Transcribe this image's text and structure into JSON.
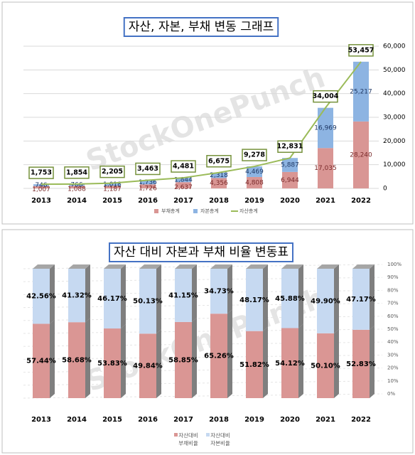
{
  "chart_data": [
    {
      "type": "stacked-bar-line",
      "title": "자산, 자본, 부채 변동 그래프",
      "watermark": "StockOnePunch",
      "categories": [
        "2013",
        "2014",
        "2015",
        "2016",
        "2017",
        "2018",
        "2019",
        "2020",
        "2021",
        "2022"
      ],
      "series": [
        {
          "name": "부채총계",
          "color": "#d99694",
          "kind": "bar",
          "values": [
            1007,
            1088,
            1187,
            1726,
            2637,
            4356,
            4808,
            6944,
            17035,
            28240
          ],
          "value_labels": [
            "1,007",
            "1,088",
            "1,187",
            "1,726",
            "2,637",
            "4,356",
            "4,808",
            "6,944",
            "17,035",
            "28,240"
          ]
        },
        {
          "name": "자본총계",
          "color": "#8db4e2",
          "kind": "bar",
          "values": [
            746,
            766,
            1018,
            1736,
            1844,
            2318,
            4469,
            5887,
            16969,
            25217
          ],
          "value_labels": [
            "746",
            "766",
            "1,018",
            "1,736",
            "1,844",
            "2,318",
            "4,469",
            "5,887",
            "16,969",
            "25,217"
          ]
        },
        {
          "name": "자산총계",
          "color": "#9bbb59",
          "kind": "line",
          "values": [
            1753,
            1854,
            2205,
            3463,
            4481,
            6675,
            9278,
            12831,
            34004,
            53457
          ],
          "value_labels": [
            "1,753",
            "1,854",
            "2,205",
            "3,463",
            "4,481",
            "6,675",
            "9,278",
            "12,831",
            "34,004",
            "53,457"
          ]
        }
      ],
      "ylim": [
        0,
        60000
      ],
      "yticks": [
        0,
        {
          "value": 10000,
          "label": "10,000"
        },
        {
          "value": 20000,
          "label": "20,000"
        },
        {
          "value": 30000,
          "label": "30,000"
        },
        {
          "value": 40000,
          "label": "40,000"
        },
        {
          "value": 50000,
          "label": "50,000"
        },
        {
          "value": 60000,
          "label": "60,000"
        }
      ],
      "grid": true
    },
    {
      "type": "stacked-bar-3d",
      "title": "자산 대비 자본과 부채 비율 변동표",
      "watermark": "StockOnePunch",
      "categories": [
        "2013",
        "2014",
        "2015",
        "2016",
        "2017",
        "2018",
        "2019",
        "2020",
        "2021",
        "2022"
      ],
      "series": [
        {
          "name": "자산대비 부채비율",
          "color": "#da9694",
          "values": [
            57.44,
            58.68,
            53.83,
            49.84,
            58.85,
            65.26,
            51.82,
            54.12,
            50.1,
            52.83
          ],
          "value_labels": [
            "57.44%",
            "58.68%",
            "53.83%",
            "49.84%",
            "58.85%",
            "65.26%",
            "51.82%",
            "54.12%",
            "50.10%",
            "52.83%"
          ]
        },
        {
          "name": "자산대비 자본비율",
          "color": "#c6d9f1",
          "values": [
            42.56,
            41.32,
            46.17,
            50.13,
            41.15,
            34.73,
            48.17,
            45.88,
            49.9,
            47.17
          ],
          "value_labels": [
            "42.56%",
            "41.32%",
            "46.17%",
            "50.13%",
            "41.15%",
            "34.73%",
            "48.17%",
            "45.88%",
            "49.90%",
            "47.17%"
          ]
        }
      ],
      "ylim": [
        0,
        100
      ],
      "yticks": [
        {
          "value": 0,
          "label": "0%"
        },
        {
          "value": 10,
          "label": "10%"
        },
        {
          "value": 20,
          "label": "20%"
        },
        {
          "value": 30,
          "label": "30%"
        },
        {
          "value": 40,
          "label": "40%"
        },
        {
          "value": 50,
          "label": "50%"
        },
        {
          "value": 60,
          "label": "60%"
        },
        {
          "value": 70,
          "label": "70%"
        },
        {
          "value": 80,
          "label": "80%"
        },
        {
          "value": 90,
          "label": "90%"
        },
        {
          "value": 100,
          "label": "100%"
        }
      ],
      "grid": true
    }
  ]
}
